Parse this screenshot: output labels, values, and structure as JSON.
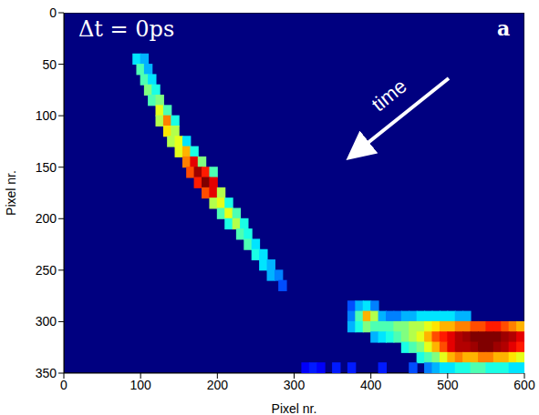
{
  "chart_data": {
    "type": "heatmap",
    "title": "Δt = 0ps",
    "panel_label": "a",
    "annotations": [
      "time"
    ],
    "x_label": "Pixel nr.",
    "y_label": "Pixel nr.",
    "xlim": [
      0,
      600
    ],
    "ylim": [
      0,
      350
    ],
    "xticks": [
      0,
      100,
      200,
      300,
      400,
      500,
      600
    ],
    "yticks": [
      0,
      50,
      100,
      150,
      200,
      250,
      300,
      350
    ],
    "cell_size": [
      10,
      10
    ],
    "clim": [
      0,
      1
    ],
    "cells": [
      [
        95,
        45,
        0.35
      ],
      [
        105,
        45,
        0.3
      ],
      [
        100,
        55,
        0.45
      ],
      [
        110,
        55,
        0.3
      ],
      [
        105,
        65,
        0.45
      ],
      [
        115,
        65,
        0.35
      ],
      [
        110,
        75,
        0.5
      ],
      [
        120,
        75,
        0.4
      ],
      [
        115,
        85,
        0.45
      ],
      [
        125,
        85,
        0.5
      ],
      [
        125,
        95,
        0.6
      ],
      [
        135,
        95,
        0.45
      ],
      [
        125,
        105,
        0.55
      ],
      [
        135,
        105,
        0.75
      ],
      [
        145,
        105,
        0.4
      ],
      [
        135,
        115,
        0.65
      ],
      [
        145,
        115,
        0.55
      ],
      [
        140,
        125,
        0.55
      ],
      [
        150,
        125,
        0.6
      ],
      [
        160,
        125,
        0.35
      ],
      [
        150,
        135,
        0.6
      ],
      [
        160,
        135,
        0.7
      ],
      [
        170,
        135,
        0.4
      ],
      [
        160,
        145,
        0.75
      ],
      [
        170,
        145,
        0.9
      ],
      [
        180,
        145,
        0.5
      ],
      [
        165,
        155,
        0.8
      ],
      [
        175,
        155,
        0.97
      ],
      [
        185,
        155,
        0.85
      ],
      [
        195,
        155,
        0.45
      ],
      [
        175,
        165,
        0.85
      ],
      [
        185,
        165,
        1.0
      ],
      [
        195,
        165,
        0.9
      ],
      [
        185,
        175,
        0.8
      ],
      [
        195,
        175,
        0.9
      ],
      [
        205,
        175,
        0.55
      ],
      [
        195,
        185,
        0.55
      ],
      [
        205,
        185,
        0.6
      ],
      [
        215,
        185,
        0.4
      ],
      [
        205,
        195,
        0.45
      ],
      [
        215,
        195,
        0.6
      ],
      [
        225,
        195,
        0.45
      ],
      [
        215,
        205,
        0.4
      ],
      [
        225,
        205,
        0.55
      ],
      [
        235,
        205,
        0.4
      ],
      [
        230,
        215,
        0.45
      ],
      [
        240,
        215,
        0.4
      ],
      [
        240,
        225,
        0.45
      ],
      [
        250,
        225,
        0.35
      ],
      [
        250,
        235,
        0.4
      ],
      [
        260,
        235,
        0.35
      ],
      [
        260,
        245,
        0.35
      ],
      [
        270,
        245,
        0.3
      ],
      [
        270,
        255,
        0.3
      ],
      [
        280,
        255,
        0.25
      ],
      [
        285,
        265,
        0.2
      ],
      [
        375,
        285,
        0.2
      ],
      [
        385,
        285,
        0.3
      ],
      [
        395,
        285,
        0.35
      ],
      [
        405,
        285,
        0.25
      ],
      [
        375,
        295,
        0.25
      ],
      [
        385,
        295,
        0.45
      ],
      [
        395,
        295,
        0.7
      ],
      [
        405,
        295,
        0.55
      ],
      [
        415,
        295,
        0.3
      ],
      [
        425,
        295,
        0.25
      ],
      [
        435,
        295,
        0.25
      ],
      [
        445,
        295,
        0.3
      ],
      [
        455,
        295,
        0.3
      ],
      [
        465,
        295,
        0.35
      ],
      [
        475,
        295,
        0.35
      ],
      [
        485,
        295,
        0.35
      ],
      [
        495,
        295,
        0.35
      ],
      [
        505,
        295,
        0.35
      ],
      [
        515,
        295,
        0.3
      ],
      [
        525,
        295,
        0.3
      ],
      [
        375,
        305,
        0.3
      ],
      [
        385,
        305,
        0.4
      ],
      [
        395,
        305,
        0.5
      ],
      [
        405,
        305,
        0.45
      ],
      [
        415,
        305,
        0.45
      ],
      [
        425,
        305,
        0.45
      ],
      [
        435,
        305,
        0.5
      ],
      [
        445,
        305,
        0.5
      ],
      [
        455,
        305,
        0.55
      ],
      [
        465,
        305,
        0.55
      ],
      [
        475,
        305,
        0.6
      ],
      [
        485,
        305,
        0.65
      ],
      [
        495,
        305,
        0.7
      ],
      [
        505,
        305,
        0.7
      ],
      [
        515,
        305,
        0.75
      ],
      [
        525,
        305,
        0.75
      ],
      [
        535,
        305,
        0.8
      ],
      [
        545,
        305,
        0.8
      ],
      [
        555,
        305,
        0.85
      ],
      [
        565,
        305,
        0.85
      ],
      [
        575,
        305,
        0.8
      ],
      [
        585,
        305,
        0.75
      ],
      [
        595,
        305,
        0.7
      ],
      [
        405,
        315,
        0.3
      ],
      [
        415,
        315,
        0.35
      ],
      [
        425,
        315,
        0.4
      ],
      [
        435,
        315,
        0.45
      ],
      [
        445,
        315,
        0.5
      ],
      [
        455,
        315,
        0.55
      ],
      [
        465,
        315,
        0.6
      ],
      [
        475,
        315,
        0.7
      ],
      [
        485,
        315,
        0.8
      ],
      [
        495,
        315,
        0.85
      ],
      [
        505,
        315,
        0.9
      ],
      [
        515,
        315,
        0.95
      ],
      [
        525,
        315,
        0.97
      ],
      [
        535,
        315,
        1.0
      ],
      [
        545,
        315,
        1.0
      ],
      [
        555,
        315,
        1.0
      ],
      [
        565,
        315,
        1.0
      ],
      [
        575,
        315,
        0.97
      ],
      [
        585,
        315,
        0.95
      ],
      [
        595,
        315,
        0.9
      ],
      [
        445,
        325,
        0.4
      ],
      [
        455,
        325,
        0.45
      ],
      [
        465,
        325,
        0.5
      ],
      [
        475,
        325,
        0.6
      ],
      [
        485,
        325,
        0.7
      ],
      [
        495,
        325,
        0.8
      ],
      [
        505,
        325,
        0.9
      ],
      [
        515,
        325,
        0.95
      ],
      [
        525,
        325,
        0.95
      ],
      [
        535,
        325,
        0.97
      ],
      [
        545,
        325,
        1.0
      ],
      [
        555,
        325,
        1.0
      ],
      [
        565,
        325,
        0.97
      ],
      [
        575,
        325,
        0.95
      ],
      [
        585,
        325,
        0.9
      ],
      [
        595,
        325,
        0.85
      ],
      [
        465,
        335,
        0.4
      ],
      [
        475,
        335,
        0.45
      ],
      [
        485,
        335,
        0.5
      ],
      [
        495,
        335,
        0.6
      ],
      [
        505,
        335,
        0.7
      ],
      [
        515,
        335,
        0.75
      ],
      [
        525,
        335,
        0.7
      ],
      [
        535,
        335,
        0.7
      ],
      [
        545,
        335,
        0.75
      ],
      [
        555,
        335,
        0.75
      ],
      [
        565,
        335,
        0.7
      ],
      [
        575,
        335,
        0.7
      ],
      [
        585,
        335,
        0.65
      ],
      [
        595,
        335,
        0.6
      ],
      [
        315,
        345,
        0.12
      ],
      [
        325,
        345,
        0.15
      ],
      [
        335,
        345,
        0.12
      ],
      [
        355,
        345,
        0.15
      ],
      [
        375,
        345,
        0.15
      ],
      [
        415,
        345,
        0.15
      ],
      [
        455,
        345,
        0.2
      ],
      [
        475,
        345,
        0.25
      ],
      [
        485,
        345,
        0.3
      ],
      [
        495,
        345,
        0.35
      ],
      [
        505,
        345,
        0.35
      ],
      [
        515,
        345,
        0.4
      ],
      [
        525,
        345,
        0.4
      ],
      [
        535,
        345,
        0.45
      ],
      [
        545,
        345,
        0.45
      ],
      [
        555,
        345,
        0.4
      ],
      [
        565,
        345,
        0.4
      ],
      [
        575,
        345,
        0.4
      ],
      [
        585,
        345,
        0.35
      ],
      [
        595,
        345,
        0.35
      ]
    ]
  }
}
